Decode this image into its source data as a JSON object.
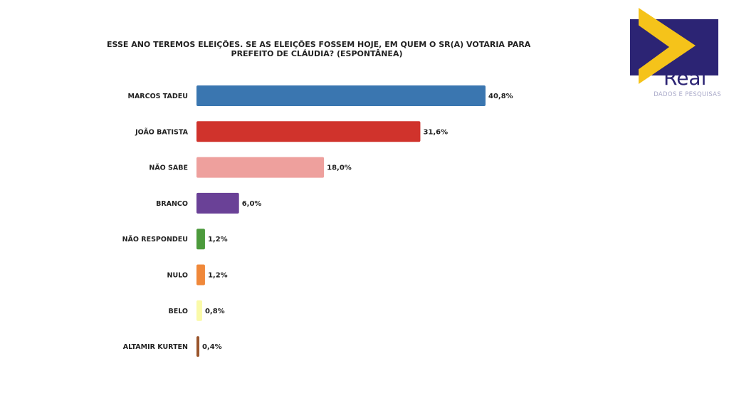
{
  "chart_data": {
    "type": "bar",
    "orientation": "horizontal",
    "title_lines": [
      "ESSE ANO TEREMOS ELEIÇÕES. SE AS ELEIÇÕES FOSSEM HOJE, EM QUEM O SR(A) VOTARIA PARA",
      "PREFEITO DE CLÁUDIA? (ESPONTÂNEA)"
    ],
    "categories": [
      "MARCOS TADEU",
      "JOÃO BATISTA",
      "NÃO SABE",
      "BRANCO",
      "NÃO RESPONDEU",
      "NULO",
      "BELO",
      "ALTAMIR KURTEN"
    ],
    "values": [
      40.8,
      31.6,
      18.0,
      6.0,
      1.2,
      1.2,
      0.8,
      0.4
    ],
    "value_labels": [
      "40,8%",
      "31,6%",
      "18,0%",
      "6,0%",
      "1,2%",
      "1,2%",
      "0,8%",
      "0,4%"
    ],
    "colors": [
      "#3a76b0",
      "#d0332c",
      "#eea09d",
      "#6a4197",
      "#4c9a3c",
      "#f0883a",
      "#fafaa8",
      "#99542b"
    ],
    "xlim": [
      0,
      40.8
    ],
    "grid": false,
    "legend": "none"
  },
  "logo": {
    "word": "Real",
    "tagline": "DADOS E PESQUISAS",
    "colors": {
      "navy": "#2c2474",
      "yellow": "#f5c31a"
    }
  }
}
